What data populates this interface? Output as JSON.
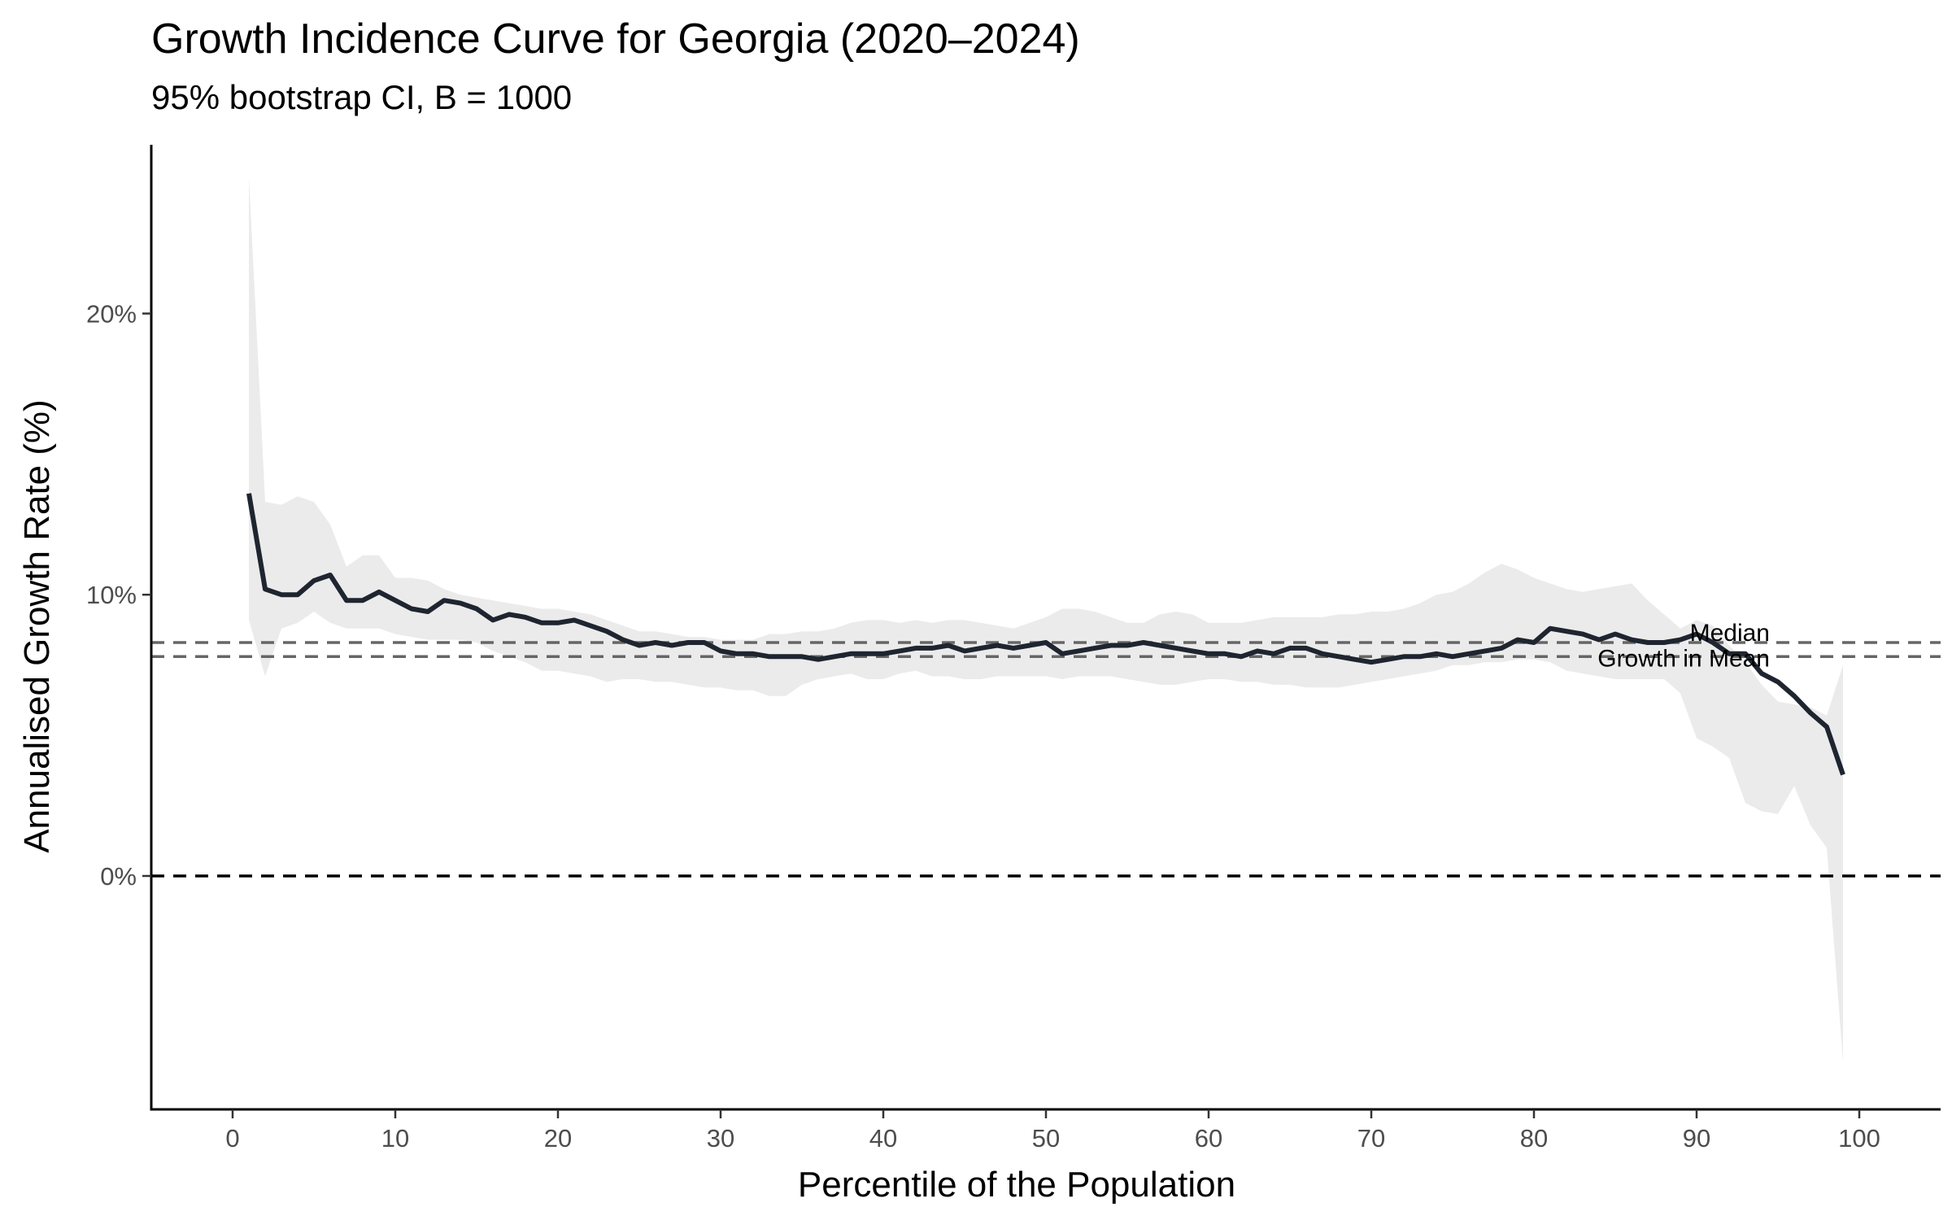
{
  "chart_data": {
    "type": "line",
    "title": "Growth Incidence Curve for Georgia (2020–2024)",
    "subtitle": "95% bootstrap CI, B = 1000",
    "xlabel": "Percentile of the Population",
    "ylabel": "Annualised Growth Rate (%)",
    "xlim": [
      -5,
      105
    ],
    "ylim": [
      -8.3,
      26.0
    ],
    "x_ticks": [
      0,
      10,
      20,
      30,
      40,
      50,
      60,
      70,
      80,
      90,
      100
    ],
    "x_tick_labels": [
      "0",
      "10",
      "20",
      "30",
      "40",
      "50",
      "60",
      "70",
      "80",
      "90",
      "100"
    ],
    "y_ticks": [
      0,
      10,
      20
    ],
    "y_tick_labels": [
      "0%",
      "10%",
      "20%"
    ],
    "grid": false,
    "reference_lines": [
      {
        "label": "Median",
        "y": 8.3,
        "style": "dashed",
        "color": "#666666"
      },
      {
        "label": "Growth in Mean",
        "y": 7.8,
        "style": "dashed",
        "color": "#666666"
      },
      {
        "label": "",
        "y": 0,
        "style": "dashed",
        "color": "#000000"
      }
    ],
    "series": [
      {
        "color": "#1f2530",
        "x": [
          1,
          2,
          3,
          4,
          5,
          6,
          7,
          8,
          9,
          10,
          11,
          12,
          13,
          14,
          15,
          16,
          17,
          18,
          19,
          20,
          21,
          22,
          23,
          24,
          25,
          26,
          27,
          28,
          29,
          30,
          31,
          32,
          33,
          34,
          35,
          36,
          37,
          38,
          39,
          40,
          41,
          42,
          43,
          44,
          45,
          46,
          47,
          48,
          49,
          50,
          51,
          52,
          53,
          54,
          55,
          56,
          57,
          58,
          59,
          60,
          61,
          62,
          63,
          64,
          65,
          66,
          67,
          68,
          69,
          70,
          71,
          72,
          73,
          74,
          75,
          76,
          77,
          78,
          79,
          80,
          81,
          82,
          83,
          84,
          85,
          86,
          87,
          88,
          89,
          90,
          91,
          92,
          93,
          94,
          95,
          96,
          97,
          98,
          99
        ],
        "values": [
          13.6,
          10.2,
          10.0,
          10.0,
          10.5,
          10.7,
          9.8,
          9.8,
          10.1,
          9.8,
          9.5,
          9.4,
          9.8,
          9.7,
          9.5,
          9.1,
          9.3,
          9.2,
          9.0,
          9.0,
          9.1,
          8.9,
          8.7,
          8.4,
          8.2,
          8.3,
          8.2,
          8.3,
          8.3,
          8.0,
          7.9,
          7.9,
          7.8,
          7.8,
          7.8,
          7.7,
          7.8,
          7.9,
          7.9,
          7.9,
          8.0,
          8.1,
          8.1,
          8.2,
          8.0,
          8.1,
          8.2,
          8.1,
          8.2,
          8.3,
          7.9,
          8.0,
          8.1,
          8.2,
          8.2,
          8.3,
          8.2,
          8.1,
          8.0,
          7.9,
          7.9,
          7.8,
          8.0,
          7.9,
          8.1,
          8.1,
          7.9,
          7.8,
          7.7,
          7.6,
          7.7,
          7.8,
          7.8,
          7.9,
          7.8,
          7.9,
          8.0,
          8.1,
          8.4,
          8.3,
          8.8,
          8.7,
          8.6,
          8.4,
          8.6,
          8.4,
          8.3,
          8.3,
          8.4,
          8.6,
          8.3,
          7.9,
          7.9,
          7.2,
          6.9,
          6.4,
          5.8,
          5.3,
          3.6
        ],
        "ci_lower": [
          9.1,
          7.1,
          8.8,
          9.0,
          9.4,
          9.0,
          8.8,
          8.8,
          8.8,
          8.6,
          8.5,
          8.4,
          8.4,
          8.4,
          8.3,
          8.0,
          7.8,
          7.6,
          7.3,
          7.3,
          7.2,
          7.1,
          6.9,
          7.0,
          7.0,
          6.9,
          6.9,
          6.8,
          6.7,
          6.7,
          6.6,
          6.6,
          6.4,
          6.4,
          6.8,
          7.0,
          7.1,
          7.2,
          7.0,
          7.0,
          7.2,
          7.3,
          7.1,
          7.1,
          7.0,
          7.0,
          7.1,
          7.1,
          7.1,
          7.1,
          7.0,
          7.1,
          7.1,
          7.1,
          7.0,
          6.9,
          6.8,
          6.8,
          6.9,
          7.0,
          7.0,
          6.9,
          6.9,
          6.8,
          6.8,
          6.7,
          6.7,
          6.7,
          6.8,
          6.9,
          7.0,
          7.1,
          7.2,
          7.3,
          7.5,
          7.5,
          7.6,
          7.6,
          7.7,
          7.7,
          7.6,
          7.3,
          7.2,
          7.1,
          7.0,
          7.0,
          7.0,
          7.0,
          6.5,
          4.9,
          4.6,
          4.2,
          2.6,
          2.3,
          2.2,
          3.2,
          1.8,
          1.0,
          -6.6
        ],
        "ci_upper": [
          24.9,
          13.3,
          13.2,
          13.5,
          13.3,
          12.5,
          11.0,
          11.4,
          11.4,
          10.6,
          10.6,
          10.5,
          10.2,
          10.0,
          9.9,
          9.8,
          9.7,
          9.6,
          9.5,
          9.5,
          9.4,
          9.3,
          9.1,
          8.9,
          8.7,
          8.7,
          8.6,
          8.5,
          8.5,
          8.4,
          8.4,
          8.4,
          8.6,
          8.6,
          8.7,
          8.7,
          8.8,
          9.0,
          9.1,
          9.1,
          9.0,
          9.1,
          9.0,
          9.1,
          9.1,
          9.0,
          8.9,
          8.8,
          9.0,
          9.2,
          9.5,
          9.5,
          9.4,
          9.2,
          9.0,
          9.0,
          9.3,
          9.4,
          9.3,
          9.0,
          9.0,
          9.0,
          9.1,
          9.2,
          9.2,
          9.2,
          9.2,
          9.3,
          9.3,
          9.4,
          9.4,
          9.5,
          9.7,
          10.0,
          10.1,
          10.4,
          10.8,
          11.1,
          10.9,
          10.6,
          10.4,
          10.2,
          10.1,
          10.2,
          10.3,
          10.4,
          9.8,
          9.3,
          8.8,
          9.1,
          8.9,
          8.2,
          7.6,
          6.8,
          6.2,
          6.1,
          6.0,
          5.7,
          7.5
        ]
      }
    ]
  }
}
